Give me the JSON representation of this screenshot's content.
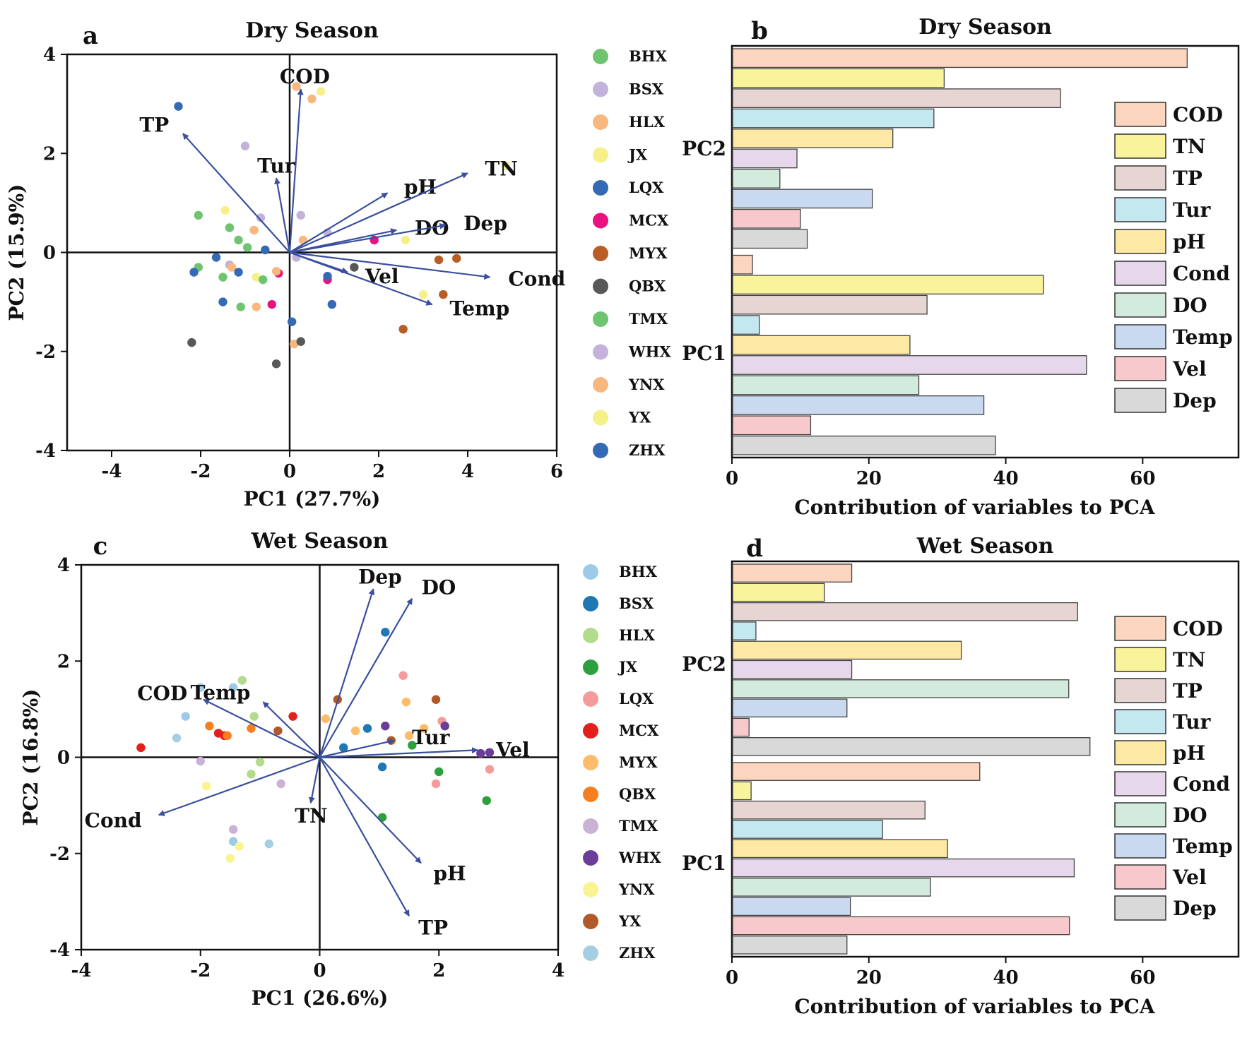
{
  "colors": {
    "arrow": "#3a4f9e",
    "axis": "#111111"
  },
  "legend_dry": [
    {
      "name": "BHX",
      "color": "#6fc46f"
    },
    {
      "name": "BSX",
      "color": "#c3b3da"
    },
    {
      "name": "HLX",
      "color": "#f8b77f"
    },
    {
      "name": "JX",
      "color": "#f6f08a"
    },
    {
      "name": "LQX",
      "color": "#3469b3"
    },
    {
      "name": "MCX",
      "color": "#e9127e"
    },
    {
      "name": "MYX",
      "color": "#b95d26"
    },
    {
      "name": "QBX",
      "color": "#585858"
    },
    {
      "name": "TMX",
      "color": "#6fc46f"
    },
    {
      "name": "WHX",
      "color": "#c3b3da"
    },
    {
      "name": "YNX",
      "color": "#f8b77f"
    },
    {
      "name": "YX",
      "color": "#f6f08a"
    },
    {
      "name": "ZHX",
      "color": "#3469b3"
    }
  ],
  "legend_wet": [
    {
      "name": "BHX",
      "color": "#9ccbe8"
    },
    {
      "name": "BSX",
      "color": "#1f77b4"
    },
    {
      "name": "HLX",
      "color": "#b2dc8c"
    },
    {
      "name": "JX",
      "color": "#2ca03c"
    },
    {
      "name": "LQX",
      "color": "#f59b9b"
    },
    {
      "name": "MCX",
      "color": "#e3201c"
    },
    {
      "name": "MYX",
      "color": "#fcbc6a"
    },
    {
      "name": "QBX",
      "color": "#f57f20"
    },
    {
      "name": "TMX",
      "color": "#cab2d6"
    },
    {
      "name": "WHX",
      "color": "#6a3d9a"
    },
    {
      "name": "YNX",
      "color": "#f9f490"
    },
    {
      "name": "YX",
      "color": "#b15928"
    },
    {
      "name": "ZHX",
      "color": "#a6cee3"
    }
  ],
  "var_colors": {
    "COD": "#fbd5bd",
    "TN": "#f9f39c",
    "TP": "#e6d5d3",
    "Tur": "#c4e8ef",
    "pH": "#fde9a3",
    "Cond": "#e6d7eb",
    "DO": "#d3ebdc",
    "Temp": "#c9d9f0",
    "Vel": "#f8c9cc",
    "Dep": "#d9d9d9"
  },
  "chart_data": [
    {
      "id": "a",
      "panel_label": "a",
      "type": "scatter",
      "title": "Dry Season",
      "xlabel": "PC1 (27.7%)",
      "ylabel": "PC2 (15.9%)",
      "xlim": [
        -5,
        6
      ],
      "ylim": [
        -4,
        4
      ],
      "xticks": [
        -4,
        -2,
        0,
        2,
        4,
        6
      ],
      "yticks": [
        -4,
        -2,
        0,
        2,
        4
      ],
      "loadings": [
        {
          "name": "COD",
          "x": 0.25,
          "y": 3.3
        },
        {
          "name": "TP",
          "x": -2.4,
          "y": 2.4
        },
        {
          "name": "Tur",
          "x": -0.3,
          "y": 1.5
        },
        {
          "name": "pH",
          "x": 2.2,
          "y": 1.2
        },
        {
          "name": "TN",
          "x": 4.0,
          "y": 1.6
        },
        {
          "name": "DO",
          "x": 2.4,
          "y": 0.45
        },
        {
          "name": "Dep",
          "x": 3.5,
          "y": 0.55
        },
        {
          "name": "Vel",
          "x": 1.3,
          "y": -0.4
        },
        {
          "name": "Cond",
          "x": 4.5,
          "y": -0.5
        },
        {
          "name": "Temp",
          "x": 3.2,
          "y": -1.05
        }
      ],
      "points": [
        {
          "site": "LQX",
          "x": -2.5,
          "y": 2.95
        },
        {
          "site": "BSX",
          "x": -1.0,
          "y": 2.15
        },
        {
          "site": "HLX",
          "x": 0.15,
          "y": 3.35
        },
        {
          "site": "YNX",
          "x": 0.5,
          "y": 3.1
        },
        {
          "site": "JX",
          "x": 0.7,
          "y": 3.25
        },
        {
          "site": "YX",
          "x": 4.85,
          "y": 1.75
        },
        {
          "site": "BHX",
          "x": -2.05,
          "y": 0.75
        },
        {
          "site": "JX",
          "x": -1.45,
          "y": 0.85
        },
        {
          "site": "TMX",
          "x": -1.35,
          "y": 0.5
        },
        {
          "site": "BHX",
          "x": -1.15,
          "y": 0.25
        },
        {
          "site": "TMX",
          "x": -0.95,
          "y": 0.1
        },
        {
          "site": "WHX",
          "x": -0.65,
          "y": 0.7
        },
        {
          "site": "YNX",
          "x": -0.8,
          "y": 0.45
        },
        {
          "site": "BSX",
          "x": 0.25,
          "y": 0.75
        },
        {
          "site": "BSX",
          "x": 0.85,
          "y": 0.4
        },
        {
          "site": "HLX",
          "x": 0.3,
          "y": 0.25
        },
        {
          "site": "MCX",
          "x": 1.9,
          "y": 0.25
        },
        {
          "site": "JX",
          "x": 2.6,
          "y": 0.25
        },
        {
          "site": "WHX",
          "x": 0.15,
          "y": -0.1
        },
        {
          "site": "LQX",
          "x": -0.55,
          "y": 0.05
        },
        {
          "site": "ZHX",
          "x": -1.65,
          "y": -0.1
        },
        {
          "site": "WHX",
          "x": -1.35,
          "y": -0.25
        },
        {
          "site": "HLX",
          "x": -1.3,
          "y": -0.3
        },
        {
          "site": "BHX",
          "x": -2.05,
          "y": -0.3
        },
        {
          "site": "ZHX",
          "x": -2.15,
          "y": -0.4
        },
        {
          "site": "ZHX",
          "x": -1.15,
          "y": -0.4
        },
        {
          "site": "BHX",
          "x": -1.5,
          "y": -0.5
        },
        {
          "site": "JX",
          "x": -0.75,
          "y": -0.5
        },
        {
          "site": "TMX",
          "x": -0.6,
          "y": -0.55
        },
        {
          "site": "MCX",
          "x": -0.25,
          "y": -0.42
        },
        {
          "site": "YNX",
          "x": -0.3,
          "y": -0.38
        },
        {
          "site": "MCX",
          "x": 0.85,
          "y": -0.55
        },
        {
          "site": "LQX",
          "x": 0.85,
          "y": -0.48
        },
        {
          "site": "LQX",
          "x": -1.5,
          "y": -1.0
        },
        {
          "site": "TMX",
          "x": -1.1,
          "y": -1.1
        },
        {
          "site": "YNX",
          "x": -0.75,
          "y": -1.1
        },
        {
          "site": "MCX",
          "x": -0.4,
          "y": -1.05
        },
        {
          "site": "LQX",
          "x": 0.95,
          "y": -1.05
        },
        {
          "site": "LQX",
          "x": 0.05,
          "y": -1.4
        },
        {
          "site": "MYX",
          "x": 3.35,
          "y": -0.15
        },
        {
          "site": "MYX",
          "x": 3.75,
          "y": -0.12
        },
        {
          "site": "YX",
          "x": 3.0,
          "y": -0.85
        },
        {
          "site": "MYX",
          "x": 3.45,
          "y": -0.85
        },
        {
          "site": "MYX",
          "x": 2.55,
          "y": -1.55
        },
        {
          "site": "QBX",
          "x": -2.2,
          "y": -1.82
        },
        {
          "site": "HLX",
          "x": 0.1,
          "y": -1.85
        },
        {
          "site": "QBX",
          "x": 0.25,
          "y": -1.8
        },
        {
          "site": "QBX",
          "x": -0.3,
          "y": -2.25
        },
        {
          "site": "QBX",
          "x": 1.45,
          "y": -0.3
        }
      ]
    },
    {
      "id": "b",
      "panel_label": "b",
      "type": "bar",
      "orientation": "horizontal",
      "title": "Dry Season",
      "xlabel": "Contribution  of variables to PCA",
      "xlim": [
        0,
        74
      ],
      "xticks": [
        0,
        20,
        40,
        60
      ],
      "groups": [
        "PC2",
        "PC1"
      ],
      "variables": [
        "COD",
        "TN",
        "TP",
        "Tur",
        "pH",
        "Cond",
        "DO",
        "Temp",
        "Vel",
        "Dep"
      ],
      "series": [
        {
          "name": "PC2",
          "values": [
            66.5,
            31.0,
            48.0,
            29.5,
            23.5,
            9.5,
            7.0,
            20.5,
            10.0,
            11.0
          ]
        },
        {
          "name": "PC1",
          "values": [
            3.0,
            45.5,
            28.5,
            4.0,
            26.0,
            51.8,
            27.3,
            36.8,
            11.5,
            38.5
          ]
        }
      ]
    },
    {
      "id": "c",
      "panel_label": "c",
      "type": "scatter",
      "title": "Wet Season",
      "xlabel": "PC1 (26.6%)",
      "ylabel": "PC2 (16.8%)",
      "xlim": [
        -4,
        4
      ],
      "ylim": [
        -4,
        4
      ],
      "xticks": [
        -4,
        -2,
        0,
        2,
        4
      ],
      "yticks": [
        -4,
        -2,
        0,
        2,
        4
      ],
      "loadings": [
        {
          "name": "Dep",
          "x": 0.9,
          "y": 3.5
        },
        {
          "name": "DO",
          "x": 1.55,
          "y": 3.3
        },
        {
          "name": "COD",
          "x": -1.95,
          "y": 1.2
        },
        {
          "name": "Temp",
          "x": -0.95,
          "y": 1.15
        },
        {
          "name": "Tur",
          "x": 1.25,
          "y": 0.35
        },
        {
          "name": "Vel",
          "x": 2.65,
          "y": 0.15
        },
        {
          "name": "Cond",
          "x": -2.7,
          "y": -1.2
        },
        {
          "name": "TN",
          "x": -0.15,
          "y": -0.95
        },
        {
          "name": "pH",
          "x": 1.7,
          "y": -2.2
        },
        {
          "name": "TP",
          "x": 1.5,
          "y": -3.3
        }
      ],
      "points": [
        {
          "site": "BSX",
          "x": 1.1,
          "y": 2.6
        },
        {
          "site": "ZHX",
          "x": -2.0,
          "y": 1.45
        },
        {
          "site": "HLX",
          "x": -1.3,
          "y": 1.6
        },
        {
          "site": "BHX",
          "x": -1.45,
          "y": 1.45
        },
        {
          "site": "BHX",
          "x": -2.25,
          "y": 0.85
        },
        {
          "site": "ZHX",
          "x": -2.4,
          "y": 0.4
        },
        {
          "site": "QBX",
          "x": -1.85,
          "y": 0.65
        },
        {
          "site": "MCX",
          "x": -1.7,
          "y": 0.5
        },
        {
          "site": "MCX",
          "x": -1.6,
          "y": 0.45
        },
        {
          "site": "QBX",
          "x": -1.55,
          "y": 0.45
        },
        {
          "site": "QBX",
          "x": -1.15,
          "y": 0.6
        },
        {
          "site": "HLX",
          "x": -1.1,
          "y": 0.85
        },
        {
          "site": "YX",
          "x": -0.7,
          "y": 0.55
        },
        {
          "site": "MCX",
          "x": -0.45,
          "y": 0.85
        },
        {
          "site": "MCX",
          "x": -3.0,
          "y": 0.2
        },
        {
          "site": "YX",
          "x": 0.3,
          "y": 1.2
        },
        {
          "site": "MYX",
          "x": 0.1,
          "y": 0.8
        },
        {
          "site": "MYX",
          "x": 0.6,
          "y": 0.55
        },
        {
          "site": "BSX",
          "x": 0.8,
          "y": 0.6
        },
        {
          "site": "WHX",
          "x": 1.1,
          "y": 0.65
        },
        {
          "site": "YX",
          "x": 1.2,
          "y": 0.35
        },
        {
          "site": "LQX",
          "x": 1.4,
          "y": 1.7
        },
        {
          "site": "MYX",
          "x": 1.45,
          "y": 1.15
        },
        {
          "site": "MYX",
          "x": 1.5,
          "y": 0.45
        },
        {
          "site": "MYX",
          "x": 1.75,
          "y": 0.6
        },
        {
          "site": "YX",
          "x": 1.95,
          "y": 1.2
        },
        {
          "site": "LQX",
          "x": 2.05,
          "y": 0.75
        },
        {
          "site": "WHX",
          "x": 2.1,
          "y": 0.65
        },
        {
          "site": "JX",
          "x": 1.55,
          "y": 0.25
        },
        {
          "site": "BSX",
          "x": 0.4,
          "y": 0.2
        },
        {
          "site": "WHX",
          "x": 2.7,
          "y": 0.08
        },
        {
          "site": "WHX",
          "x": 2.85,
          "y": 0.1
        },
        {
          "site": "BSX",
          "x": 1.05,
          "y": -0.2
        },
        {
          "site": "JX",
          "x": 2.0,
          "y": -0.3
        },
        {
          "site": "LQX",
          "x": 1.95,
          "y": -0.55
        },
        {
          "site": "LQX",
          "x": 2.85,
          "y": -0.25
        },
        {
          "site": "JX",
          "x": 2.8,
          "y": -0.9
        },
        {
          "site": "JX",
          "x": 1.05,
          "y": -1.25
        },
        {
          "site": "HLX",
          "x": -1.0,
          "y": -0.1
        },
        {
          "site": "TMX",
          "x": -2.0,
          "y": -0.08
        },
        {
          "site": "HLX",
          "x": -1.15,
          "y": -0.35
        },
        {
          "site": "TMX",
          "x": -0.65,
          "y": -0.55
        },
        {
          "site": "YNX",
          "x": -1.9,
          "y": -0.6
        },
        {
          "site": "TMX",
          "x": -1.45,
          "y": -1.5
        },
        {
          "site": "BHX",
          "x": -1.45,
          "y": -1.75
        },
        {
          "site": "YNX",
          "x": -1.35,
          "y": -1.85
        },
        {
          "site": "ZHX",
          "x": -0.85,
          "y": -1.8
        },
        {
          "site": "YNX",
          "x": -1.5,
          "y": -2.1
        }
      ]
    },
    {
      "id": "d",
      "panel_label": "d",
      "type": "bar",
      "orientation": "horizontal",
      "title": "Wet Season",
      "xlabel": "Contribution  of variables to PCA",
      "xlim": [
        0,
        74
      ],
      "xticks": [
        0,
        20,
        40,
        60
      ],
      "groups": [
        "PC2",
        "PC1"
      ],
      "variables": [
        "COD",
        "TN",
        "TP",
        "Tur",
        "pH",
        "Cond",
        "DO",
        "Temp",
        "Vel",
        "Dep"
      ],
      "series": [
        {
          "name": "PC2",
          "values": [
            17.5,
            13.5,
            50.5,
            3.5,
            33.5,
            17.5,
            49.2,
            16.8,
            2.5,
            52.3
          ]
        },
        {
          "name": "PC1",
          "values": [
            36.2,
            2.8,
            28.2,
            22.0,
            31.5,
            50.0,
            29.0,
            17.3,
            49.3,
            16.8
          ]
        }
      ]
    }
  ]
}
